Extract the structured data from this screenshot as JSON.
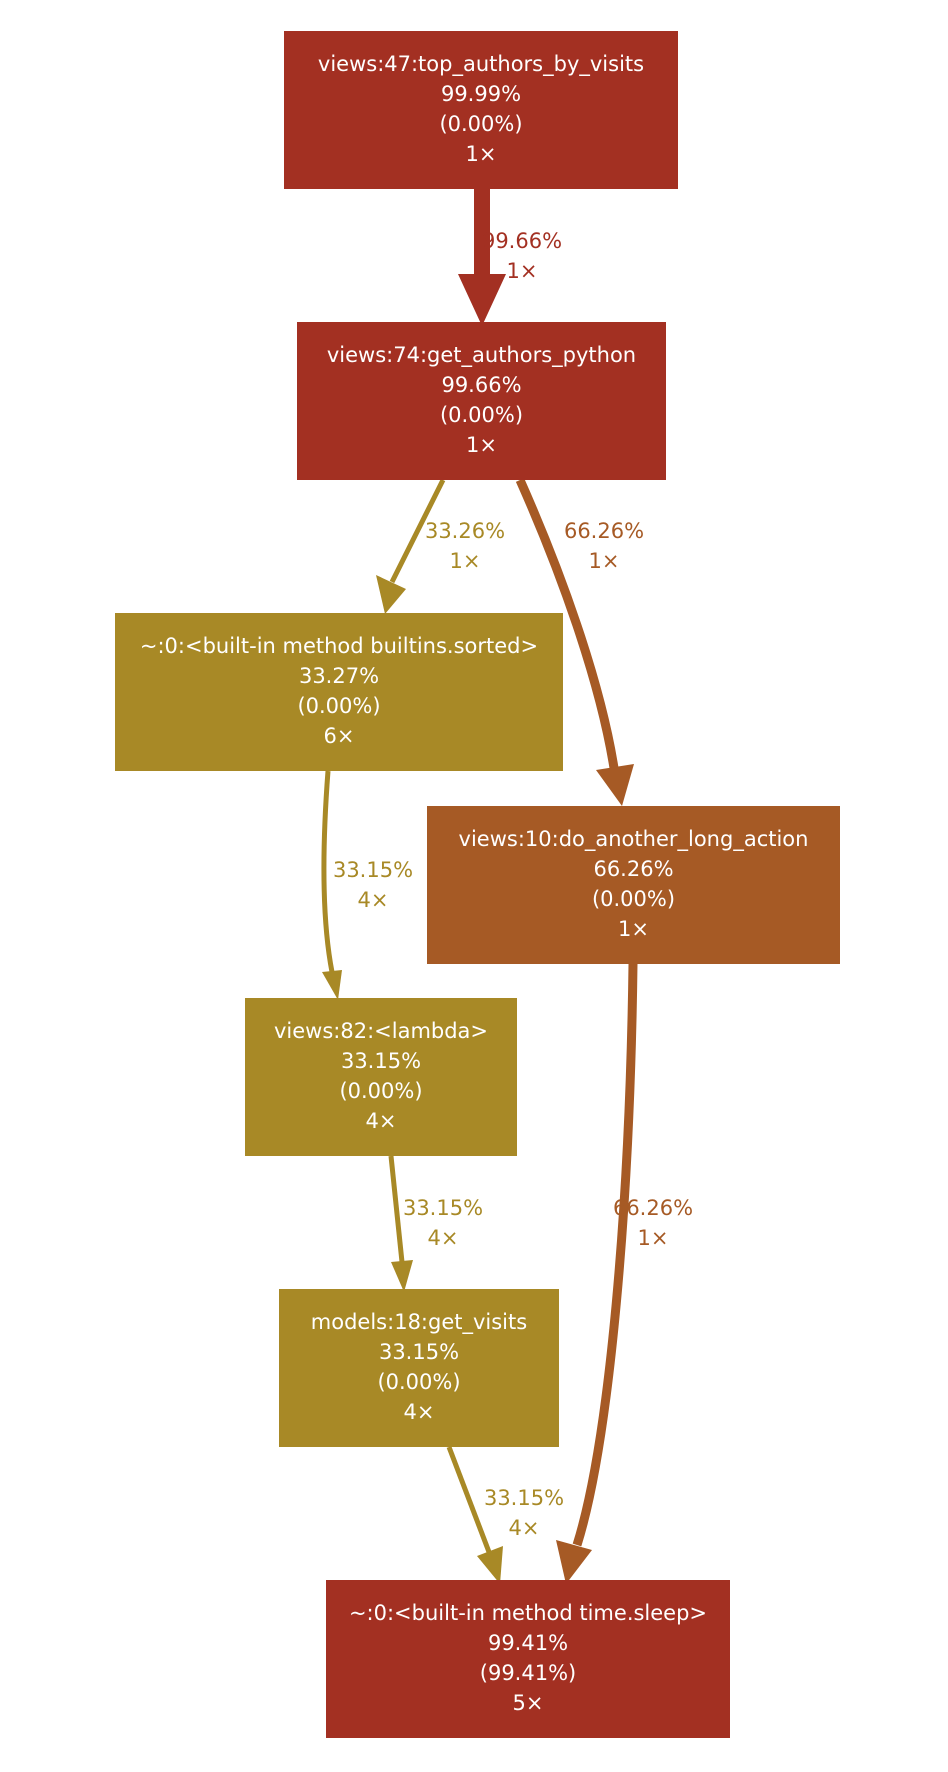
{
  "colors": {
    "red": "#a33022",
    "orange": "#a65a25",
    "olive": "#a88926",
    "node_text": "#ffffff",
    "background": "#ffffff"
  },
  "nodes": [
    {
      "id": "top",
      "name": "views:47:top_authors_by_visits",
      "total": "99.99%",
      "self": "(0.00%)",
      "calls": "1×",
      "color": "#a33022"
    },
    {
      "id": "get_python",
      "name": "views:74:get_authors_python",
      "total": "99.66%",
      "self": "(0.00%)",
      "calls": "1×",
      "color": "#a33022"
    },
    {
      "id": "sorted",
      "name": "~:0:<built-in method builtins.sorted>",
      "total": "33.27%",
      "self": "(0.00%)",
      "calls": "6×",
      "color": "#a88926"
    },
    {
      "id": "long_action",
      "name": "views:10:do_another_long_action",
      "total": "66.26%",
      "self": "(0.00%)",
      "calls": "1×",
      "color": "#a65a25"
    },
    {
      "id": "lambda",
      "name": "views:82:<lambda>",
      "total": "33.15%",
      "self": "(0.00%)",
      "calls": "4×",
      "color": "#a88926"
    },
    {
      "id": "get_visits",
      "name": "models:18:get_visits",
      "total": "33.15%",
      "self": "(0.00%)",
      "calls": "4×",
      "color": "#a88926"
    },
    {
      "id": "sleep",
      "name": "~:0:<built-in method time.sleep>",
      "total": "99.41%",
      "self": "(99.41%)",
      "calls": "5×",
      "color": "#a33022"
    }
  ],
  "edges": [
    {
      "id": "e1",
      "from": "top",
      "to": "get_python",
      "pct": "99.66%",
      "calls": "1×",
      "color": "#a33022"
    },
    {
      "id": "e2",
      "from": "get_python",
      "to": "sorted",
      "pct": "33.26%",
      "calls": "1×",
      "color": "#a88926"
    },
    {
      "id": "e3",
      "from": "get_python",
      "to": "long_action",
      "pct": "66.26%",
      "calls": "1×",
      "color": "#a65a25"
    },
    {
      "id": "e4",
      "from": "sorted",
      "to": "lambda",
      "pct": "33.15%",
      "calls": "4×",
      "color": "#a88926"
    },
    {
      "id": "e5",
      "from": "long_action",
      "to": "sleep",
      "pct": "66.26%",
      "calls": "1×",
      "color": "#a65a25"
    },
    {
      "id": "e6",
      "from": "lambda",
      "to": "get_visits",
      "pct": "33.15%",
      "calls": "4×",
      "color": "#a88926"
    },
    {
      "id": "e7",
      "from": "get_visits",
      "to": "sleep",
      "pct": "33.15%",
      "calls": "4×",
      "color": "#a88926"
    }
  ]
}
